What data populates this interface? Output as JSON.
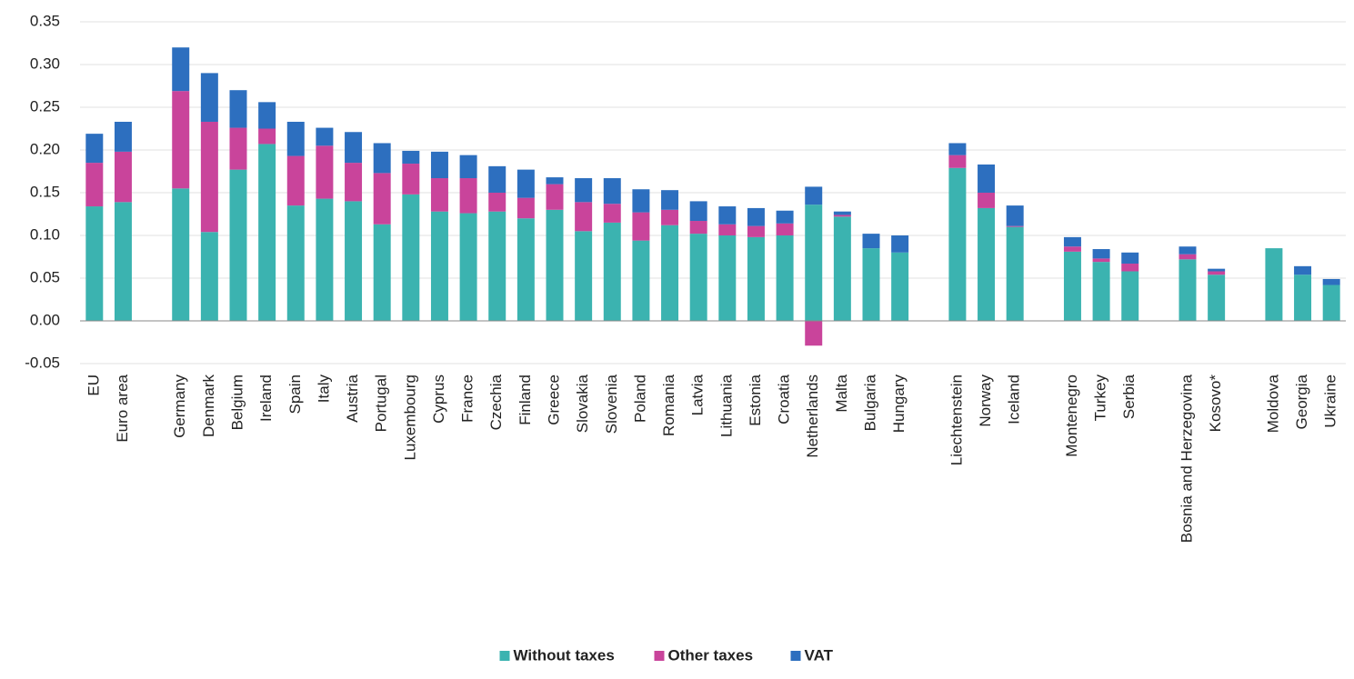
{
  "chart_data": {
    "type": "stacked_bar",
    "categories": [
      "EU",
      "Euro area",
      null,
      "Germany",
      "Denmark",
      "Belgium",
      "Ireland",
      "Spain",
      "Italy",
      "Austria",
      "Portugal",
      "Luxembourg",
      "Cyprus",
      "France",
      "Czechia",
      "Finland",
      "Greece",
      "Slovakia",
      "Slovenia",
      "Poland",
      "Romania",
      "Latvia",
      "Lithuania",
      "Estonia",
      "Croatia",
      "Netherlands",
      "Malta",
      "Bulgaria",
      "Hungary",
      null,
      "Liechtenstein",
      "Norway",
      "Iceland",
      null,
      "Montenegro",
      "Turkey",
      "Serbia",
      null,
      "Bosnia and Herzegovina",
      "Kosovo*",
      null,
      "Moldova",
      "Georgia",
      "Ukraine"
    ],
    "series": [
      {
        "name": "Without taxes",
        "color": "#3bb3b0",
        "values": [
          0.134,
          0.139,
          null,
          0.155,
          0.104,
          0.177,
          0.207,
          0.135,
          0.143,
          0.14,
          0.113,
          0.148,
          0.128,
          0.126,
          0.128,
          0.12,
          0.13,
          0.105,
          0.115,
          0.094,
          0.112,
          0.102,
          0.1,
          0.098,
          0.1,
          0.136,
          0.122,
          0.085,
          0.08,
          null,
          0.179,
          0.132,
          0.11,
          null,
          0.081,
          0.069,
          0.058,
          null,
          0.072,
          0.054,
          null,
          0.085,
          0.054,
          0.042
        ]
      },
      {
        "name": "Other taxes",
        "color": "#c9449b",
        "values": [
          0.051,
          0.059,
          null,
          0.114,
          0.129,
          0.049,
          0.018,
          0.058,
          0.062,
          0.045,
          0.06,
          0.036,
          0.039,
          0.041,
          0.022,
          0.024,
          0.03,
          0.034,
          0.022,
          0.033,
          0.018,
          0.015,
          0.013,
          0.013,
          0.014,
          -0.029,
          0.002,
          0,
          0,
          null,
          0.015,
          0.018,
          0.001,
          null,
          0.006,
          0.004,
          0.009,
          null,
          0.006,
          0.004,
          null,
          0,
          0,
          0
        ]
      },
      {
        "name": "VAT",
        "color": "#2d6fbf",
        "values": [
          0.034,
          0.035,
          null,
          0.051,
          0.057,
          0.044,
          0.031,
          0.04,
          0.021,
          0.036,
          0.035,
          0.015,
          0.031,
          0.027,
          0.031,
          0.033,
          0.008,
          0.028,
          0.03,
          0.027,
          0.023,
          0.023,
          0.021,
          0.021,
          0.015,
          0.021,
          0.004,
          0.017,
          0.02,
          null,
          0.014,
          0.033,
          0.024,
          null,
          0.011,
          0.011,
          0.013,
          null,
          0.009,
          0.003,
          null,
          0,
          0.01,
          0.007
        ]
      }
    ],
    "ylim": [
      -0.05,
      0.35
    ],
    "yticks": [
      -0.05,
      {
        "value": 0,
        "label": "0.00"
      },
      0.05,
      {
        "value": 0.1,
        "label": "0.10"
      },
      0.15,
      {
        "value": 0.2,
        "label": "0.20"
      },
      0.25,
      {
        "value": 0.3,
        "label": "0.30"
      },
      0.35
    ],
    "grid": true,
    "legend": "bottom"
  }
}
